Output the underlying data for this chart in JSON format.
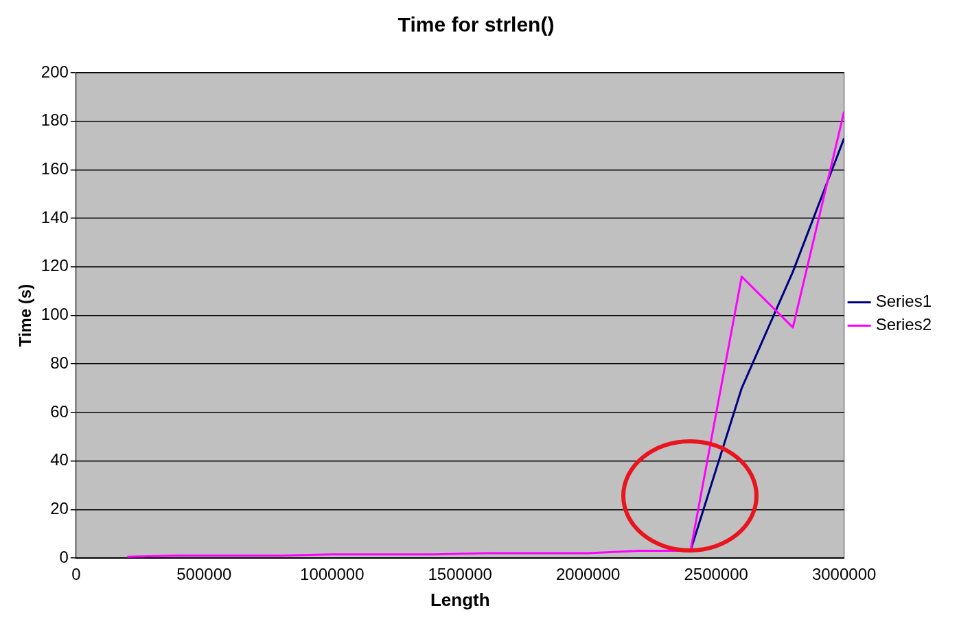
{
  "chart_data": {
    "type": "line",
    "title": "Time for strlen()",
    "xlabel": "Length",
    "ylabel": "Time (s)",
    "x": [
      200000,
      400000,
      600000,
      800000,
      1000000,
      1200000,
      1400000,
      1600000,
      1800000,
      2000000,
      2200000,
      2400000,
      2600000,
      2800000,
      3000000
    ],
    "series": [
      {
        "name": "Series1",
        "color": "#000080",
        "values": [
          null,
          null,
          null,
          null,
          null,
          null,
          null,
          null,
          null,
          null,
          null,
          3,
          70,
          118,
          173
        ]
      },
      {
        "name": "Series2",
        "color": "#ff00ff",
        "values": [
          0.5,
          1,
          1,
          1,
          1.5,
          1.5,
          1.5,
          2,
          2,
          2,
          3,
          3,
          116,
          95,
          184
        ]
      }
    ],
    "xlim": [
      0,
      3000000
    ],
    "xticks": [
      0,
      500000,
      1000000,
      1500000,
      2000000,
      2500000,
      3000000
    ],
    "ylim": [
      0,
      200
    ],
    "yticks": [
      0,
      20,
      40,
      60,
      80,
      100,
      120,
      140,
      160,
      180,
      200
    ],
    "grid": "y",
    "legend": "right",
    "marker": "none",
    "line_style": "solid"
  }
}
